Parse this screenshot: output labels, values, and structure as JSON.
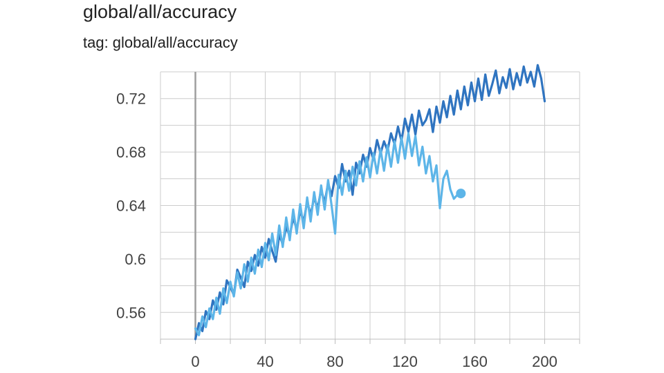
{
  "header": {
    "title": "global/all/accuracy",
    "subtitle": "tag: global/all/accuracy"
  },
  "chart_data": {
    "type": "line",
    "title": "global/all/accuracy",
    "subtitle": "tag: global/all/accuracy",
    "xlim": [
      -20,
      220
    ],
    "ylim": [
      0.54,
      0.74
    ],
    "x_ticks": [
      0,
      40,
      80,
      120,
      160,
      200
    ],
    "x_tick_labels": [
      "0",
      "40",
      "80",
      "120",
      "160",
      "200"
    ],
    "y_ticks": [
      0.56,
      0.6,
      0.64,
      0.68,
      0.72
    ],
    "y_tick_labels": [
      "0.56",
      "0.6",
      "0.64",
      "0.68",
      "0.72"
    ],
    "grid": true,
    "colors": {
      "series_dark": "#2f74c0",
      "series_light": "#5db5e8",
      "grid": "#cccccc",
      "zero_line": "#9e9e9e"
    },
    "series": [
      {
        "x": [
          0,
          2,
          4,
          6,
          8,
          10,
          12,
          14,
          16,
          18,
          20,
          22,
          24,
          26,
          28,
          30,
          32,
          34,
          36,
          38,
          40,
          42,
          44,
          46,
          48,
          50,
          52,
          54,
          56,
          58,
          60,
          62,
          64,
          66,
          68,
          70,
          72,
          74,
          76,
          78,
          80,
          82,
          84,
          86,
          88,
          90,
          92,
          94,
          96,
          98,
          100,
          102,
          104,
          106,
          108,
          110,
          112,
          114,
          116,
          118,
          120,
          122,
          124,
          126,
          128,
          130,
          132,
          134,
          136,
          138,
          140,
          142,
          144,
          146,
          148,
          150,
          152,
          154,
          156,
          158,
          160,
          162,
          164,
          166,
          168,
          170,
          172,
          174,
          176,
          178,
          180,
          182,
          184,
          186,
          188,
          190,
          192,
          194,
          196,
          198,
          200
        ],
        "y": [
          0.54,
          0.552,
          0.546,
          0.561,
          0.555,
          0.569,
          0.562,
          0.575,
          0.566,
          0.584,
          0.579,
          0.573,
          0.592,
          0.586,
          0.579,
          0.598,
          0.591,
          0.603,
          0.595,
          0.609,
          0.601,
          0.615,
          0.606,
          0.598,
          0.618,
          0.611,
          0.624,
          0.617,
          0.631,
          0.622,
          0.636,
          0.628,
          0.643,
          0.633,
          0.646,
          0.638,
          0.652,
          0.642,
          0.657,
          0.647,
          0.662,
          0.653,
          0.671,
          0.658,
          0.666,
          0.648,
          0.672,
          0.664,
          0.678,
          0.669,
          0.683,
          0.674,
          0.689,
          0.679,
          0.688,
          0.681,
          0.694,
          0.686,
          0.699,
          0.688,
          0.705,
          0.695,
          0.708,
          0.693,
          0.711,
          0.7,
          0.704,
          0.712,
          0.695,
          0.714,
          0.702,
          0.718,
          0.706,
          0.722,
          0.708,
          0.726,
          0.712,
          0.729,
          0.715,
          0.732,
          0.718,
          0.735,
          0.719,
          0.738,
          0.722,
          0.731,
          0.741,
          0.724,
          0.736,
          0.728,
          0.742,
          0.727,
          0.739,
          0.73,
          0.744,
          0.732,
          0.74,
          0.729,
          0.745,
          0.735,
          0.718
        ]
      },
      {
        "x": [
          0,
          2,
          4,
          6,
          8,
          10,
          12,
          14,
          16,
          18,
          20,
          22,
          24,
          26,
          28,
          30,
          32,
          34,
          36,
          38,
          40,
          42,
          44,
          46,
          48,
          50,
          52,
          54,
          56,
          58,
          60,
          62,
          64,
          66,
          68,
          70,
          72,
          74,
          76,
          78,
          80,
          82,
          84,
          86,
          88,
          90,
          92,
          94,
          96,
          98,
          100,
          102,
          104,
          106,
          108,
          110,
          112,
          114,
          116,
          118,
          120,
          122,
          124,
          126,
          128,
          130,
          132,
          134,
          136,
          138,
          140,
          142,
          144,
          146,
          148,
          150,
          152
        ],
        "y": [
          0.548,
          0.543,
          0.557,
          0.549,
          0.563,
          0.555,
          0.571,
          0.559,
          0.578,
          0.567,
          0.583,
          0.572,
          0.59,
          0.578,
          0.596,
          0.583,
          0.601,
          0.589,
          0.607,
          0.594,
          0.612,
          0.599,
          0.619,
          0.603,
          0.625,
          0.609,
          0.631,
          0.614,
          0.637,
          0.619,
          0.641,
          0.623,
          0.646,
          0.628,
          0.65,
          0.633,
          0.655,
          0.637,
          0.659,
          0.64,
          0.619,
          0.663,
          0.648,
          0.666,
          0.651,
          0.669,
          0.655,
          0.673,
          0.658,
          0.676,
          0.661,
          0.679,
          0.664,
          0.682,
          0.666,
          0.685,
          0.669,
          0.688,
          0.672,
          0.691,
          0.675,
          0.694,
          0.677,
          0.692,
          0.67,
          0.684,
          0.664,
          0.677,
          0.658,
          0.67,
          0.638,
          0.66,
          0.666,
          0.652,
          0.645,
          0.648,
          0.649
        ]
      }
    ]
  }
}
